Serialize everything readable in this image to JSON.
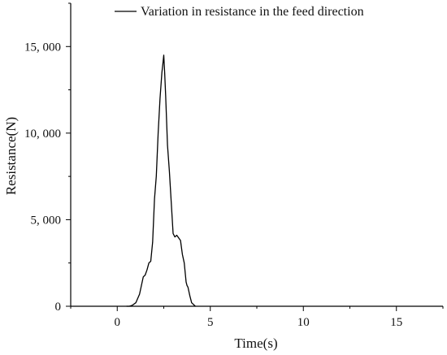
{
  "chart_data": {
    "type": "line",
    "xlabel": "Time(s)",
    "ylabel": "Resistance(N)",
    "xlim": [
      -2.5,
      17.5
    ],
    "ylim": [
      0,
      17500
    ],
    "x_ticks": [
      0,
      5,
      10,
      15
    ],
    "x_tick_labels": [
      "0",
      "5",
      "10",
      "15"
    ],
    "y_ticks": [
      0,
      5000,
      10000,
      15000
    ],
    "y_tick_labels": [
      "0",
      "5, 000",
      "10, 000",
      "15, 000"
    ],
    "grid": false,
    "legend_position": "top",
    "line_color": "#000000",
    "axis_color": "#000000",
    "series": [
      {
        "name": "Variation in resistance in the feed direction",
        "x": [
          0.5,
          0.65,
          0.8,
          1.0,
          1.2,
          1.4,
          1.5,
          1.6,
          1.7,
          1.8,
          1.9,
          2.0,
          2.1,
          2.2,
          2.3,
          2.4,
          2.45,
          2.5,
          2.55,
          2.6,
          2.7,
          2.8,
          2.9,
          3.0,
          3.1,
          3.2,
          3.4,
          3.5,
          3.6,
          3.7,
          3.75,
          3.8,
          3.9,
          4.0,
          4.2
        ],
        "values": [
          0,
          0,
          50,
          200,
          700,
          1700,
          1800,
          2100,
          2500,
          2600,
          3700,
          6200,
          7500,
          10000,
          12000,
          13500,
          14000,
          14500,
          13500,
          12200,
          9300,
          7800,
          6000,
          4200,
          4000,
          4100,
          3800,
          3000,
          2500,
          1400,
          1200,
          1100,
          600,
          200,
          0
        ]
      }
    ]
  }
}
